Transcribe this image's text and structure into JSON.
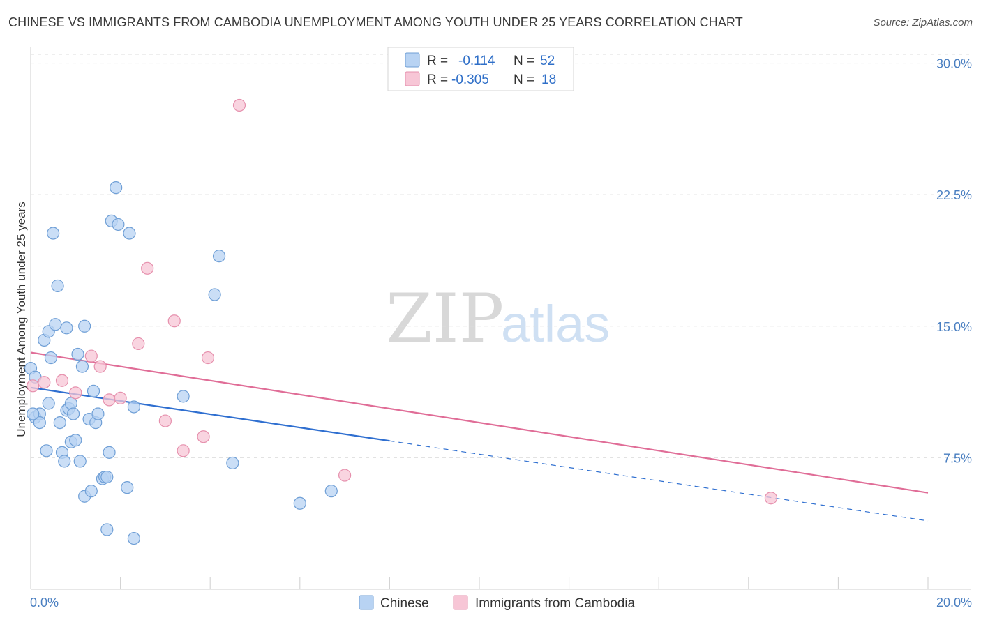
{
  "header": {
    "title": "CHINESE VS IMMIGRANTS FROM CAMBODIA UNEMPLOYMENT AMONG YOUTH UNDER 25 YEARS CORRELATION CHART",
    "source": "Source: ZipAtlas.com"
  },
  "watermark": {
    "zip": "ZIP",
    "atlas": "atlas"
  },
  "colors": {
    "chinese_fill": "#b8d3f3",
    "chinese_stroke": "#6f9fd6",
    "chinese_line": "#2f6fd0",
    "cambodia_fill": "#f7c6d6",
    "cambodia_stroke": "#e690ad",
    "cambodia_line": "#e06d97"
  },
  "legend": {
    "rows": [
      {
        "r_label": "R =",
        "r_value": "-0.114",
        "n_label": "N =",
        "n_value": "52"
      },
      {
        "r_label": "R =",
        "r_value": "-0.305",
        "n_label": "N =",
        "n_value": "18"
      }
    ]
  },
  "chart_data": {
    "type": "scatter",
    "title": "CHINESE VS IMMIGRANTS FROM CAMBODIA UNEMPLOYMENT AMONG YOUTH UNDER 25 YEARS CORRELATION CHART",
    "xlabel": "",
    "ylabel": "Unemployment Among Youth under 25 years",
    "xlim": [
      0,
      20
    ],
    "ylim": [
      0,
      30.5
    ],
    "x_tick_labels": [
      "0.0%",
      "20.0%"
    ],
    "y_ticks": [
      7.5,
      15.0,
      22.5,
      30.0
    ],
    "y_tick_labels": [
      "7.5%",
      "15.0%",
      "22.5%",
      "30.0%"
    ],
    "grid": true,
    "legend_position": "top-center",
    "series": [
      {
        "name": "Chinese",
        "r": -0.114,
        "n": 52,
        "trend": {
          "x0": 0,
          "y0": 11.5,
          "x_solid_end": 8.0,
          "x1": 20,
          "y1": 3.9
        },
        "points": [
          [
            0.0,
            12.6
          ],
          [
            0.1,
            12.1
          ],
          [
            0.1,
            9.8
          ],
          [
            0.2,
            10.0
          ],
          [
            0.2,
            9.5
          ],
          [
            0.3,
            14.2
          ],
          [
            0.35,
            7.9
          ],
          [
            0.4,
            14.7
          ],
          [
            0.4,
            10.6
          ],
          [
            0.45,
            13.2
          ],
          [
            0.5,
            20.3
          ],
          [
            0.55,
            15.1
          ],
          [
            0.6,
            17.3
          ],
          [
            0.65,
            9.5
          ],
          [
            0.7,
            7.8
          ],
          [
            0.75,
            7.3
          ],
          [
            0.8,
            10.2
          ],
          [
            0.8,
            14.9
          ],
          [
            0.85,
            10.3
          ],
          [
            0.9,
            8.4
          ],
          [
            0.9,
            10.6
          ],
          [
            0.95,
            10.0
          ],
          [
            1.0,
            8.5
          ],
          [
            1.05,
            13.4
          ],
          [
            1.1,
            7.3
          ],
          [
            1.15,
            12.7
          ],
          [
            1.2,
            5.3
          ],
          [
            1.2,
            15.0
          ],
          [
            1.3,
            9.7
          ],
          [
            1.35,
            5.6
          ],
          [
            1.4,
            11.3
          ],
          [
            1.45,
            9.5
          ],
          [
            1.5,
            10.0
          ],
          [
            1.6,
            6.3
          ],
          [
            1.65,
            6.4
          ],
          [
            1.7,
            6.4
          ],
          [
            1.7,
            3.4
          ],
          [
            1.75,
            7.8
          ],
          [
            1.8,
            21.0
          ],
          [
            1.9,
            22.9
          ],
          [
            1.95,
            20.8
          ],
          [
            2.15,
            5.8
          ],
          [
            2.2,
            20.3
          ],
          [
            2.3,
            10.4
          ],
          [
            2.3,
            2.9
          ],
          [
            3.4,
            11.0
          ],
          [
            4.1,
            16.8
          ],
          [
            4.2,
            19.0
          ],
          [
            4.5,
            7.2
          ],
          [
            6.0,
            4.9
          ],
          [
            6.7,
            5.6
          ],
          [
            0.05,
            10.0
          ]
        ]
      },
      {
        "name": "Immigrants from Cambodia",
        "r": -0.305,
        "n": 18,
        "trend": {
          "x0": 0,
          "y0": 13.5,
          "x1": 20,
          "y1": 5.5
        },
        "points": [
          [
            0.05,
            11.6
          ],
          [
            0.3,
            11.8
          ],
          [
            0.7,
            11.9
          ],
          [
            1.0,
            11.2
          ],
          [
            1.35,
            13.3
          ],
          [
            1.55,
            12.7
          ],
          [
            1.75,
            10.8
          ],
          [
            2.0,
            10.9
          ],
          [
            2.4,
            14.0
          ],
          [
            2.6,
            18.3
          ],
          [
            3.0,
            9.6
          ],
          [
            3.2,
            15.3
          ],
          [
            3.4,
            7.9
          ],
          [
            3.85,
            8.7
          ],
          [
            3.95,
            13.2
          ],
          [
            4.65,
            27.6
          ],
          [
            7.0,
            6.5
          ],
          [
            16.5,
            5.2
          ]
        ]
      }
    ]
  }
}
